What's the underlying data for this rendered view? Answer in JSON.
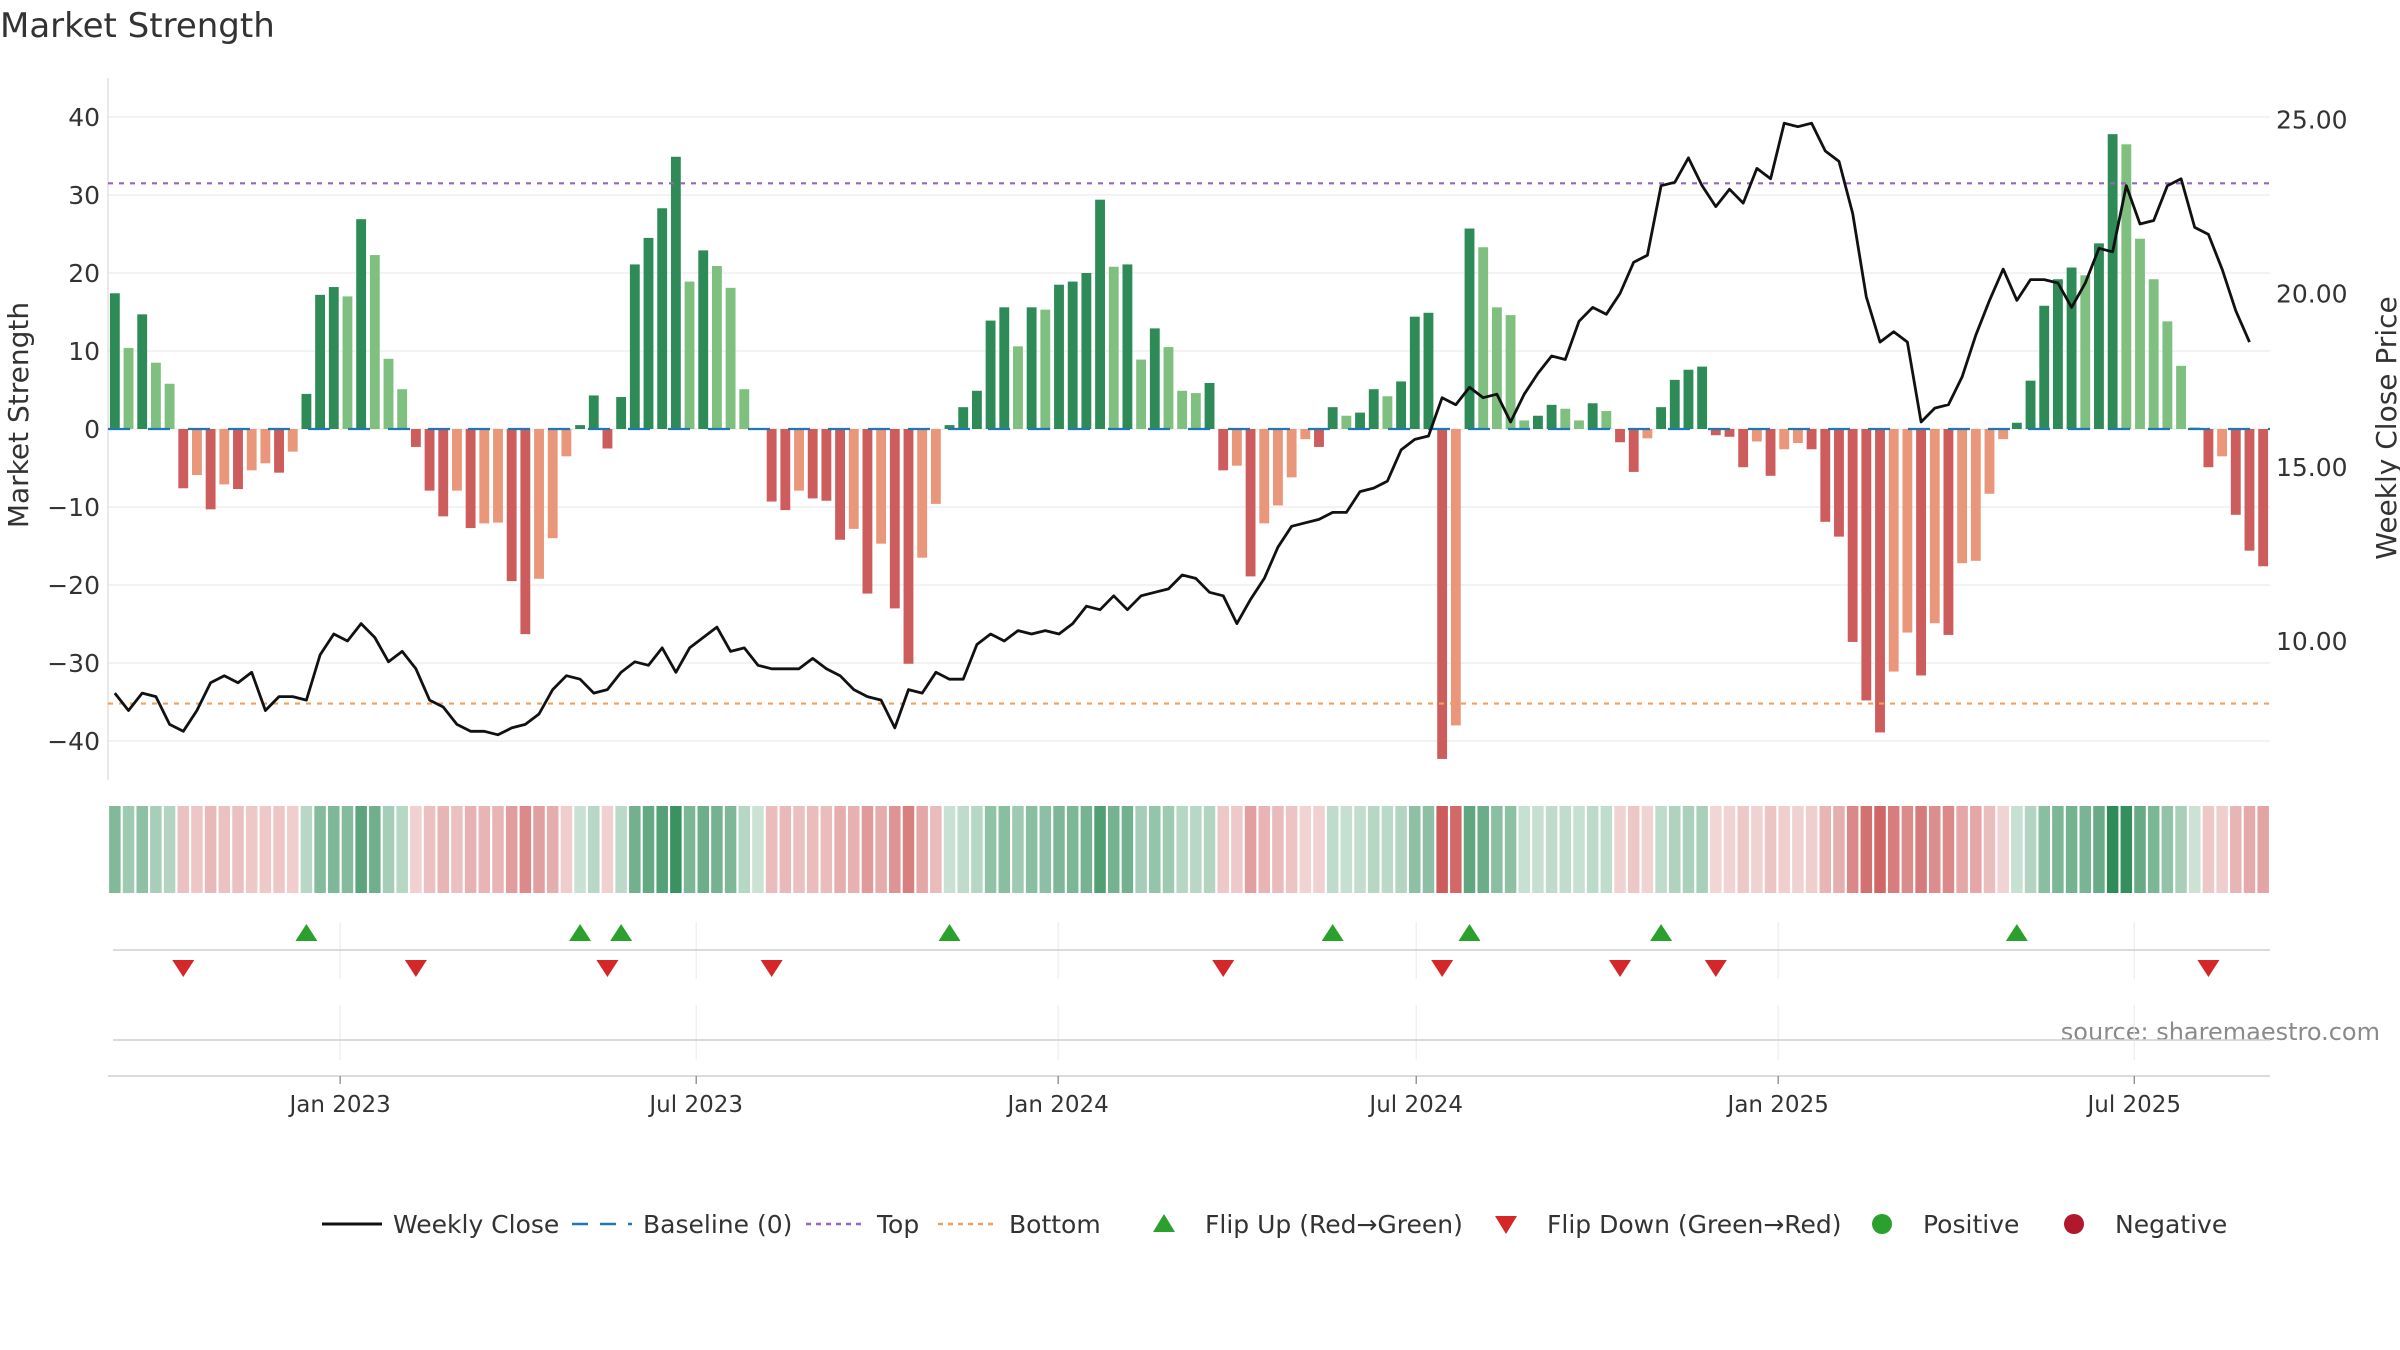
{
  "chart_data": {
    "type": "bar",
    "title": "Market Strength",
    "ylabel_left": "Market Strength",
    "ylabel_right": "Weekly Close Price",
    "source": "source: sharemaestro.com",
    "y_left": {
      "range": [
        -45,
        45
      ],
      "ticks": [
        40,
        30,
        20,
        10,
        0,
        -10,
        -20,
        -30,
        -40
      ]
    },
    "y_right": {
      "range": [
        6.0,
        26.2
      ],
      "ticks": [
        25.0,
        20.0,
        15.0,
        10.0
      ]
    },
    "x_axis": {
      "start_date": "2022-09-05",
      "end_date": "2025-09-08",
      "ticks": [
        {
          "date": "2023-01-01",
          "label": "Jan 2023"
        },
        {
          "date": "2023-07-01",
          "label": "Jul 2023"
        },
        {
          "date": "2024-01-01",
          "label": "Jan 2024"
        },
        {
          "date": "2024-07-01",
          "label": "Jul 2024"
        },
        {
          "date": "2025-01-01",
          "label": "Jan 2025"
        },
        {
          "date": "2025-07-01",
          "label": "Jul 2025"
        }
      ]
    },
    "reference_lines": [
      {
        "name": "Baseline (0)",
        "value": 0,
        "color": "#1f77b4",
        "style": "dashed"
      },
      {
        "name": "Top",
        "value": 31.5,
        "color": "#9467bd",
        "style": "dotted"
      },
      {
        "name": "Bottom",
        "value": -35.2,
        "color": "#f0a05a",
        "style": "dotted"
      }
    ],
    "colors": {
      "pos_dark": "#2e8b57",
      "pos_light": "#7fbf7f",
      "neg_dark": "#cd5c5c",
      "neg_light": "#e9967a",
      "price_line": "#111111",
      "flip_up": "#2ca02c",
      "flip_down": "#d62728",
      "positive": "#2ca02c",
      "negative": "#b2182b"
    },
    "strength": [
      17.4,
      10.4,
      14.7,
      8.5,
      5.8,
      -7.6,
      -5.9,
      -10.3,
      -7.1,
      -7.7,
      -5.3,
      -4.4,
      -5.6,
      -2.9,
      4.5,
      17.2,
      18.2,
      17.0,
      26.9,
      22.3,
      9.0,
      5.1,
      -2.3,
      -7.9,
      -11.2,
      -7.9,
      -12.7,
      -12.1,
      -12.0,
      -19.5,
      -26.3,
      -19.2,
      -14.0,
      -3.5,
      0.5,
      4.3,
      -2.5,
      4.1,
      21.1,
      24.5,
      28.3,
      34.9,
      18.9,
      22.9,
      20.9,
      18.1,
      5.1,
      0.1,
      -9.3,
      -10.4,
      -7.9,
      -8.9,
      -9.2,
      -14.2,
      -12.8,
      -21.1,
      -14.7,
      -23.0,
      -30.1,
      -16.5,
      -9.6,
      0.5,
      2.8,
      4.9,
      13.9,
      15.6,
      10.6,
      15.6,
      15.3,
      18.5,
      18.9,
      20.0,
      29.4,
      20.8,
      21.1,
      8.9,
      12.9,
      10.5,
      4.9,
      4.6,
      5.9,
      -5.3,
      -4.7,
      -18.9,
      -12.1,
      -9.8,
      -6.2,
      -1.3,
      -2.3,
      2.8,
      1.7,
      2.1,
      5.1,
      4.2,
      6.1,
      14.4,
      14.9,
      -42.3,
      -38.0,
      25.7,
      23.3,
      15.6,
      14.6,
      1.1,
      1.7,
      3.1,
      2.6,
      1.1,
      3.3,
      2.3,
      -1.7,
      -5.5,
      -1.2,
      2.8,
      6.3,
      7.6,
      8.0,
      -0.8,
      -1.0,
      -4.9,
      -1.6,
      -6.0,
      -2.6,
      -1.8,
      -2.6,
      -11.9,
      -13.8,
      -27.3,
      -34.8,
      -38.9,
      -31.1,
      -26.1,
      -31.6,
      -24.9,
      -26.4,
      -17.2,
      -16.9,
      -8.3,
      -1.3,
      0.8,
      6.2,
      15.8,
      19.2,
      20.7,
      19.7,
      23.8,
      37.8,
      36.5,
      24.4,
      19.2,
      13.8,
      8.1,
      0.2,
      -4.9,
      -3.5,
      -11.0,
      -15.6,
      -17.6
    ],
    "weekly_close": [
      8.5,
      8.0,
      8.5,
      8.4,
      7.6,
      7.4,
      8.0,
      8.8,
      9.0,
      8.8,
      9.1,
      8.0,
      8.4,
      8.4,
      8.3,
      9.6,
      10.2,
      10.0,
      10.5,
      10.1,
      9.4,
      9.7,
      9.2,
      8.3,
      8.1,
      7.6,
      7.4,
      7.4,
      7.3,
      7.5,
      7.6,
      7.9,
      8.6,
      9.0,
      8.9,
      8.5,
      8.6,
      9.1,
      9.4,
      9.3,
      9.8,
      9.1,
      9.8,
      10.1,
      10.4,
      9.7,
      9.8,
      9.3,
      9.2,
      9.2,
      9.2,
      9.5,
      9.2,
      9.0,
      8.6,
      8.4,
      8.3,
      7.5,
      8.6,
      8.5,
      9.1,
      8.9,
      8.9,
      9.9,
      10.2,
      10.0,
      10.3,
      10.2,
      10.3,
      10.2,
      10.5,
      11.0,
      10.9,
      11.3,
      10.9,
      11.3,
      11.4,
      11.5,
      11.9,
      11.8,
      11.4,
      11.3,
      10.5,
      11.2,
      11.8,
      12.7,
      13.3,
      13.4,
      13.5,
      13.7,
      13.7,
      14.3,
      14.4,
      14.6,
      15.5,
      15.8,
      15.9,
      17.0,
      16.8,
      17.3,
      17.0,
      17.1,
      16.3,
      17.1,
      17.7,
      18.2,
      18.1,
      19.2,
      19.6,
      19.4,
      20.0,
      20.9,
      21.1,
      23.1,
      23.2,
      23.9,
      23.1,
      22.5,
      23.0,
      22.6,
      23.6,
      23.3,
      24.9,
      24.8,
      24.9,
      24.1,
      23.8,
      22.3,
      19.9,
      18.6,
      18.9,
      18.6,
      16.3,
      16.7,
      16.8,
      17.6,
      18.8,
      19.8,
      20.7,
      19.8,
      20.4,
      20.4,
      20.3,
      19.6,
      20.3,
      21.3,
      21.2,
      23.1,
      22.0,
      22.1,
      23.1,
      23.3,
      21.9,
      21.7,
      20.7,
      19.5,
      18.6
    ]
  },
  "legend": [
    {
      "type": "line",
      "label": "Weekly Close",
      "color": "#111111"
    },
    {
      "type": "dash",
      "label": "Baseline (0)",
      "color": "#1f77b4"
    },
    {
      "type": "dot",
      "label": "Top",
      "color": "#9467bd"
    },
    {
      "type": "dot",
      "label": "Bottom",
      "color": "#f0a05a"
    },
    {
      "type": "up",
      "label": "Flip Up (Red→Green)",
      "color": "#2ca02c"
    },
    {
      "type": "down",
      "label": "Flip Down (Green→Red)",
      "color": "#d62728"
    },
    {
      "type": "circle",
      "label": "Positive",
      "color": "#2ca02c"
    },
    {
      "type": "circle",
      "label": "Negative",
      "color": "#b2182b"
    }
  ]
}
